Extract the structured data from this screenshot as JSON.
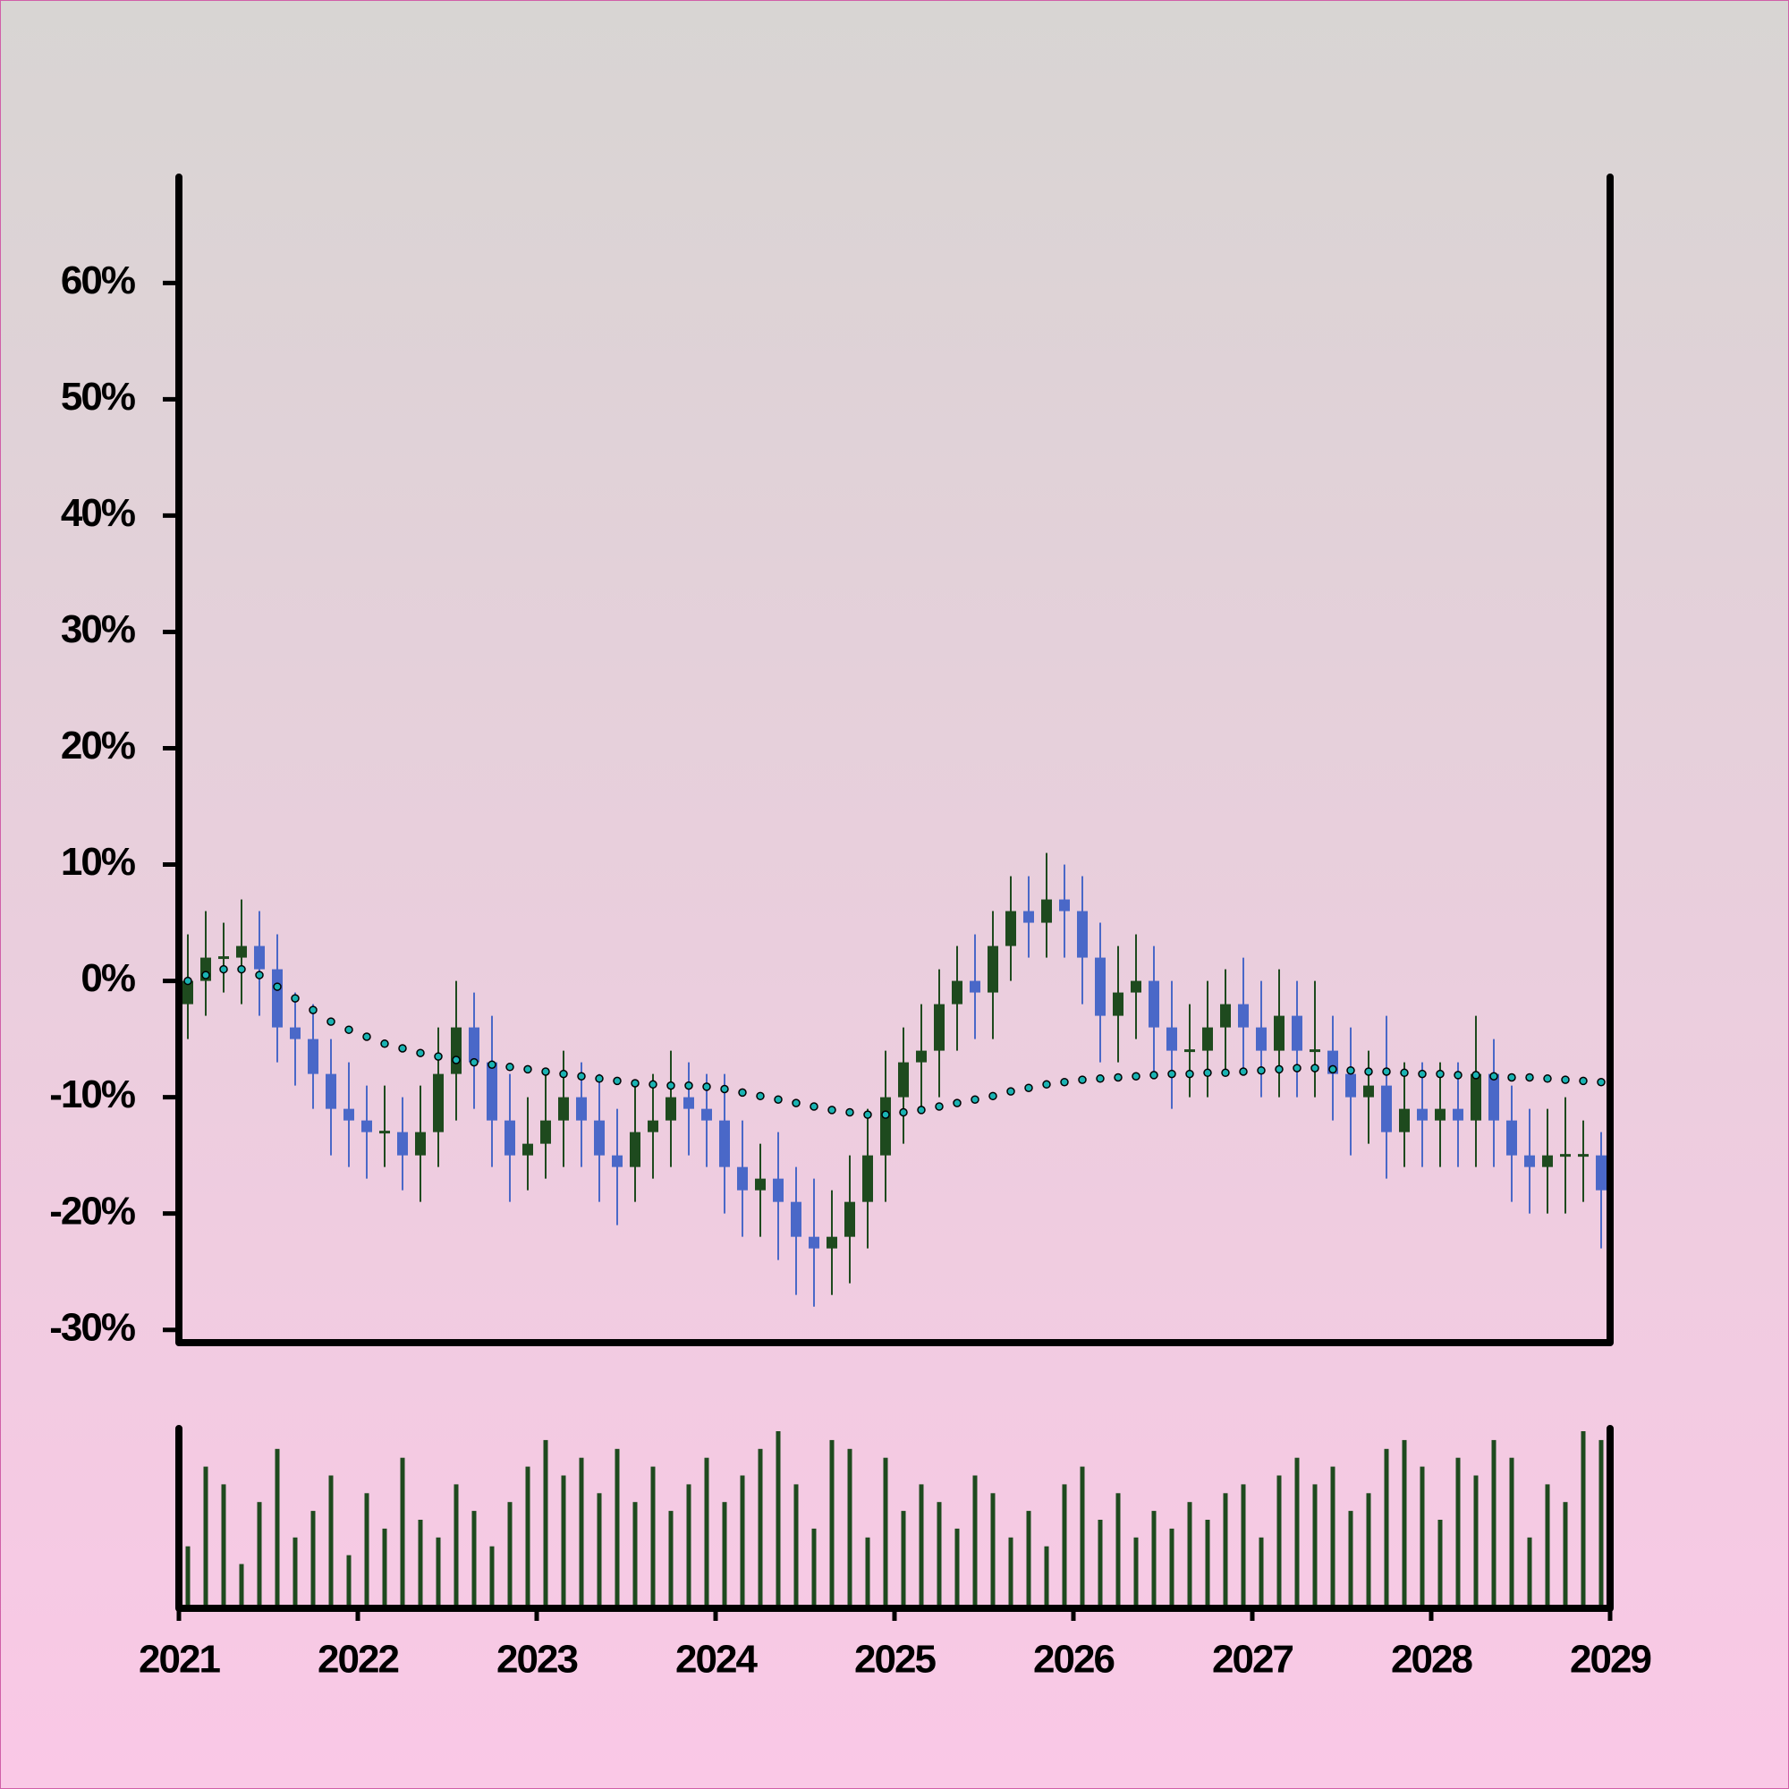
{
  "chart_data": {
    "type": "candlestick",
    "x": [
      2021.05,
      2021.15,
      2021.25,
      2021.35,
      2021.45,
      2021.55,
      2021.65,
      2021.75,
      2021.85,
      2021.95,
      2022.05,
      2022.15,
      2022.25,
      2022.35,
      2022.45,
      2022.55,
      2022.65,
      2022.75,
      2022.85,
      2022.95,
      2023.05,
      2023.15,
      2023.25,
      2023.35,
      2023.45,
      2023.55,
      2023.65,
      2023.75,
      2023.85,
      2023.95,
      2024.05,
      2024.15,
      2024.25,
      2024.35,
      2024.45,
      2024.55,
      2024.65,
      2024.75,
      2024.85,
      2024.95,
      2025.05,
      2025.15,
      2025.25,
      2025.35,
      2025.45,
      2025.55,
      2025.65,
      2025.75,
      2025.85,
      2025.95,
      2026.05,
      2026.15,
      2026.25,
      2026.35,
      2026.45,
      2026.55,
      2026.65,
      2026.75,
      2026.85,
      2026.95,
      2027.05,
      2027.15,
      2027.25,
      2027.35,
      2027.45,
      2027.55,
      2027.65,
      2027.75,
      2027.85,
      2027.95,
      2028.05,
      2028.15,
      2028.25,
      2028.35,
      2028.45,
      2028.55,
      2028.65,
      2028.75,
      2028.85,
      2028.95
    ],
    "open": [
      -2,
      0,
      2,
      2,
      3,
      1,
      -4,
      -5,
      -8,
      -11,
      -12,
      -13,
      -13,
      -15,
      -13,
      -8,
      -4,
      -7,
      -12,
      -15,
      -14,
      -12,
      -10,
      -12,
      -15,
      -16,
      -13,
      -12,
      -10,
      -11,
      -12,
      -16,
      -18,
      -17,
      -19,
      -22,
      -23,
      -22,
      -19,
      -15,
      -10,
      -7,
      -6,
      -2,
      0,
      -1,
      3,
      6,
      5,
      7,
      6,
      2,
      -3,
      -1,
      0,
      -4,
      -6,
      -6,
      -4,
      -2,
      -4,
      -6,
      -3,
      -6,
      -6,
      -8,
      -10,
      -9,
      -13,
      -11,
      -12,
      -11,
      -12,
      -8,
      -12,
      -15,
      -16,
      -15,
      -15,
      -15
    ],
    "high": [
      4,
      6,
      5,
      7,
      6,
      4,
      -1,
      -2,
      -5,
      -7,
      -9,
      -9,
      -10,
      -9,
      -4,
      0,
      -1,
      -3,
      -8,
      -10,
      -8,
      -6,
      -7,
      -8,
      -11,
      -9,
      -8,
      -6,
      -7,
      -8,
      -8,
      -12,
      -14,
      -13,
      -16,
      -17,
      -18,
      -15,
      -11,
      -6,
      -4,
      -2,
      1,
      3,
      4,
      6,
      9,
      9,
      11,
      10,
      9,
      5,
      3,
      4,
      3,
      0,
      -2,
      0,
      1,
      2,
      0,
      1,
      0,
      0,
      -3,
      -4,
      -6,
      -3,
      -7,
      -7,
      -7,
      -7,
      -3,
      -5,
      -9,
      -11,
      -11,
      -10,
      -12,
      -13
    ],
    "low": [
      -5,
      -3,
      -1,
      -2,
      -3,
      -7,
      -9,
      -11,
      -15,
      -16,
      -17,
      -16,
      -18,
      -19,
      -16,
      -12,
      -11,
      -16,
      -19,
      -18,
      -17,
      -16,
      -16,
      -19,
      -21,
      -19,
      -17,
      -16,
      -15,
      -16,
      -20,
      -22,
      -22,
      -24,
      -27,
      -28,
      -27,
      -26,
      -23,
      -19,
      -14,
      -11,
      -10,
      -6,
      -5,
      -5,
      0,
      2,
      2,
      2,
      -2,
      -7,
      -7,
      -5,
      -8,
      -11,
      -10,
      -10,
      -8,
      -8,
      -10,
      -10,
      -10,
      -10,
      -12,
      -15,
      -14,
      -17,
      -16,
      -16,
      -16,
      -16,
      -16,
      -16,
      -19,
      -20,
      -20,
      -20,
      -19,
      -23
    ],
    "close": [
      0,
      2,
      2,
      3,
      1,
      -4,
      -5,
      -8,
      -11,
      -12,
      -13,
      -13,
      -15,
      -13,
      -8,
      -4,
      -7,
      -12,
      -15,
      -14,
      -12,
      -10,
      -12,
      -15,
      -16,
      -13,
      -12,
      -10,
      -11,
      -12,
      -16,
      -18,
      -17,
      -19,
      -22,
      -23,
      -22,
      -19,
      -15,
      -10,
      -7,
      -6,
      -2,
      0,
      -1,
      3,
      6,
      5,
      7,
      6,
      2,
      -3,
      -1,
      0,
      -4,
      -6,
      -6,
      -4,
      -2,
      -4,
      -6,
      -3,
      -6,
      -6,
      -8,
      -10,
      -9,
      -13,
      -11,
      -12,
      -11,
      -12,
      -8,
      -12,
      -15,
      -16,
      -15,
      -15,
      -15,
      -18
    ],
    "volume": [
      35,
      80,
      70,
      25,
      60,
      90,
      40,
      55,
      75,
      30,
      65,
      45,
      85,
      50,
      40,
      70,
      55,
      35,
      60,
      80,
      95,
      75,
      85,
      65,
      90,
      60,
      80,
      55,
      70,
      85,
      60,
      75,
      90,
      100,
      70,
      45,
      95,
      90,
      40,
      85,
      55,
      70,
      60,
      45,
      75,
      65,
      40,
      55,
      35,
      70,
      80,
      50,
      65,
      40,
      55,
      45,
      60,
      50,
      65,
      70,
      40,
      75,
      85,
      70,
      80,
      55,
      65,
      90,
      95,
      80,
      50,
      85,
      75,
      95,
      85,
      40,
      70,
      60,
      100,
      95
    ],
    "up_color": "#1e4a1e",
    "down_color": "#4a68c8",
    "volume_color": "#1e4a1e",
    "ma": {
      "color": "#1ab3b3",
      "values": [
        0,
        0.5,
        1,
        1,
        0.5,
        -0.5,
        -1.5,
        -2.5,
        -3.5,
        -4.2,
        -4.8,
        -5.4,
        -5.8,
        -6.2,
        -6.5,
        -6.8,
        -7,
        -7.2,
        -7.4,
        -7.6,
        -7.8,
        -8,
        -8.2,
        -8.4,
        -8.6,
        -8.8,
        -8.9,
        -9,
        -9,
        -9.1,
        -9.3,
        -9.6,
        -9.9,
        -10.2,
        -10.5,
        -10.8,
        -11.1,
        -11.3,
        -11.5,
        -11.5,
        -11.3,
        -11.1,
        -10.8,
        -10.5,
        -10.2,
        -9.9,
        -9.5,
        -9.2,
        -8.9,
        -8.7,
        -8.5,
        -8.4,
        -8.3,
        -8.2,
        -8.1,
        -8,
        -8,
        -7.9,
        -7.9,
        -7.8,
        -7.7,
        -7.6,
        -7.5,
        -7.5,
        -7.6,
        -7.7,
        -7.8,
        -7.8,
        -7.9,
        -8,
        -8,
        -8.1,
        -8.1,
        -8.2,
        -8.3,
        -8.3,
        -8.4,
        -8.5,
        -8.6,
        -8.7
      ]
    },
    "xlim": [
      2021,
      2029
    ],
    "xticks": [
      2021,
      2022,
      2023,
      2024,
      2025,
      2026,
      2027,
      2028,
      2029
    ],
    "ylim": [
      -31.1,
      69.1
    ],
    "yticks": [
      {
        "value": -30,
        "label": "-30%"
      },
      {
        "value": -20,
        "label": "-20%"
      },
      {
        "value": -10,
        "label": "-10%"
      },
      {
        "value": 0,
        "label": "0%"
      },
      {
        "value": 10,
        "label": "10%"
      },
      {
        "value": 20,
        "label": "20%"
      },
      {
        "value": 30,
        "label": "30%"
      },
      {
        "value": 40,
        "label": "40%"
      },
      {
        "value": 50,
        "label": "50%"
      },
      {
        "value": 60,
        "label": "60%"
      }
    ]
  }
}
